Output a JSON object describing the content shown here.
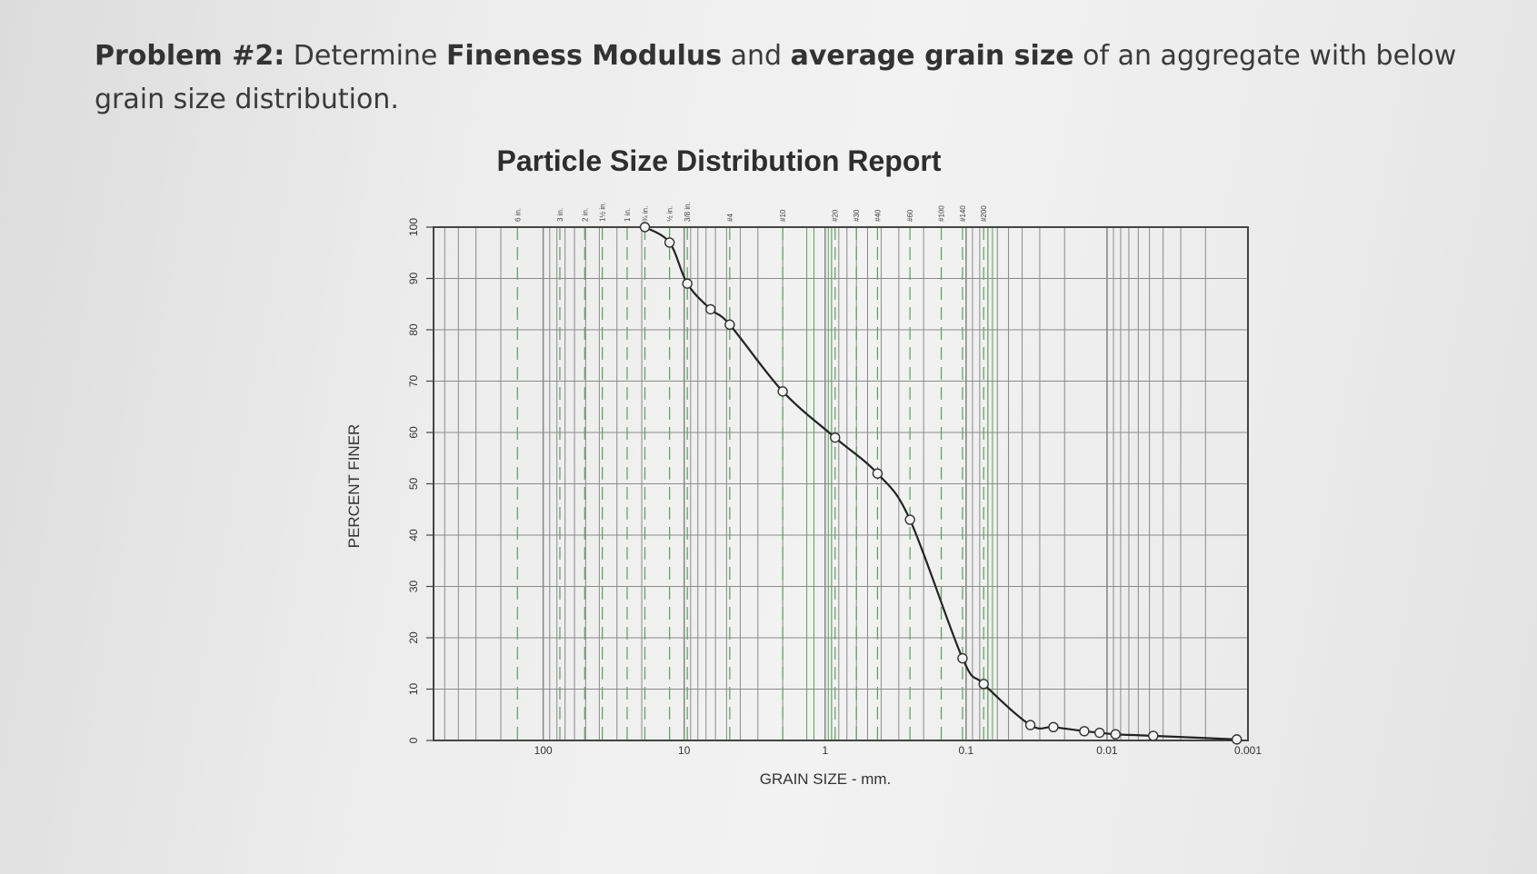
{
  "problem": {
    "label": "Problem #2:",
    "t1": "Determine",
    "b1": "Fineness Modulus",
    "t2": "and",
    "b2": "average grain size",
    "t3": "of an aggregate with below grain size distribution."
  },
  "chart_data": {
    "type": "line",
    "title": "Particle Size Distribution Report",
    "xlabel": "GRAIN SIZE - mm.",
    "ylabel": "PERCENT FINER",
    "x_scale": "log",
    "x_reversed": true,
    "xlim": [
      600,
      0.001
    ],
    "ylim": [
      0,
      100
    ],
    "grid": true,
    "x_ticks": [
      {
        "value": 100,
        "label": "100"
      },
      {
        "value": 10,
        "label": "10"
      },
      {
        "value": 1,
        "label": "1"
      },
      {
        "value": 0.1,
        "label": "0.1"
      },
      {
        "value": 0.01,
        "label": "0.01"
      },
      {
        "value": 0.001,
        "label": "0.001"
      }
    ],
    "y_ticks": [
      0,
      10,
      20,
      30,
      40,
      50,
      60,
      70,
      80,
      90,
      100
    ],
    "sieves": [
      {
        "label": "6 in.",
        "size": 152.4
      },
      {
        "label": "3 in.",
        "size": 76.2
      },
      {
        "label": "2 in.",
        "size": 50.8
      },
      {
        "label": "1½ in.",
        "size": 38.1
      },
      {
        "label": "1 in.",
        "size": 25.4
      },
      {
        "label": "¾ in.",
        "size": 19.0
      },
      {
        "label": "½ in.",
        "size": 12.7
      },
      {
        "label": "3/8 in.",
        "size": 9.5
      },
      {
        "label": "#4",
        "size": 4.75
      },
      {
        "label": "#10",
        "size": 2.0
      },
      {
        "label": "#20",
        "size": 0.85
      },
      {
        "label": "#30",
        "size": 0.6
      },
      {
        "label": "#40",
        "size": 0.425
      },
      {
        "label": "#60",
        "size": 0.25
      },
      {
        "label": "#100",
        "size": 0.15
      },
      {
        "label": "#140",
        "size": 0.106
      },
      {
        "label": "#200",
        "size": 0.075
      }
    ],
    "series": [
      {
        "points": [
          {
            "x": 19.0,
            "y": 100
          },
          {
            "x": 12.7,
            "y": 97
          },
          {
            "x": 9.5,
            "y": 89
          },
          {
            "x": 6.5,
            "y": 84
          },
          {
            "x": 4.75,
            "y": 81
          },
          {
            "x": 2.0,
            "y": 68
          },
          {
            "x": 0.85,
            "y": 59
          },
          {
            "x": 0.425,
            "y": 52
          },
          {
            "x": 0.25,
            "y": 43
          },
          {
            "x": 0.106,
            "y": 16
          },
          {
            "x": 0.075,
            "y": 11
          },
          {
            "x": 0.035,
            "y": 3
          },
          {
            "x": 0.024,
            "y": 2.6
          },
          {
            "x": 0.0145,
            "y": 1.8
          },
          {
            "x": 0.0113,
            "y": 1.5
          },
          {
            "x": 0.0087,
            "y": 1.2
          },
          {
            "x": 0.0047,
            "y": 0.9
          },
          {
            "x": 0.0012,
            "y": 0.2
          }
        ]
      }
    ]
  },
  "style": {
    "axis_color": "#444444",
    "grid_color": "#8a8a8a",
    "green_line_color": "#5aa05a",
    "curve_color": "#222222",
    "marker_fill": "#f4f4f4"
  }
}
